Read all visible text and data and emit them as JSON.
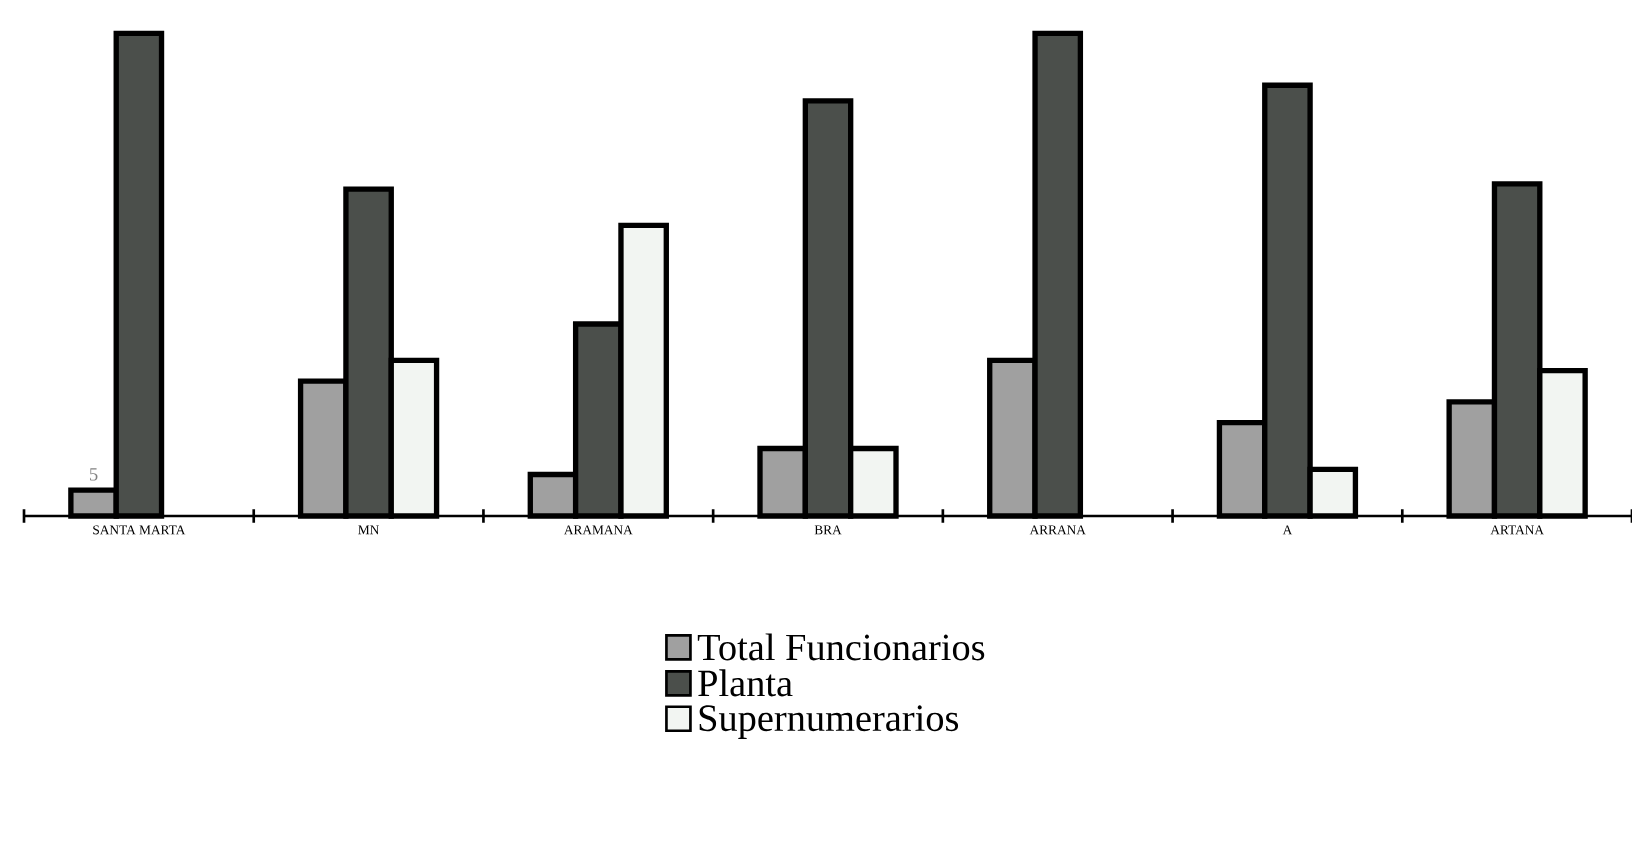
{
  "chart_data": {
    "type": "bar",
    "legend": "bottom",
    "tick_labels": "x",
    "categories": [
      "SANTA MARTA",
      "MN",
      "ARAMANA",
      "BRA",
      "ARRANA",
      "A",
      "ARTANA"
    ],
    "series": [
      {
        "name": "Total Funcionarios",
        "color": "#a0a0a0",
        "values": [
          5,
          26,
          8,
          13,
          30,
          18,
          22
        ],
        "value_labels": [
          "5",
          null,
          null,
          null,
          null,
          null,
          null
        ]
      },
      {
        "name": "Planta",
        "color": "#4b4f4b",
        "values": [
          93,
          63,
          37,
          80,
          93,
          83,
          64
        ]
      },
      {
        "name": "Supernumerarios",
        "color": "#f2f5f2",
        "values": [
          null,
          30,
          56,
          13,
          null,
          9,
          28
        ]
      }
    ]
  }
}
